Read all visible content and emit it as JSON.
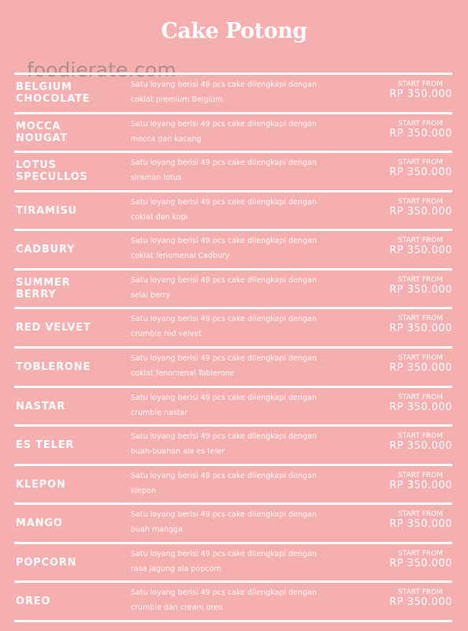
{
  "header": {
    "title": "Cake Potong",
    "watermark": "foodierate.com"
  },
  "items": [
    {
      "name": [
        "BELGIUM",
        "CHOCOLATE"
      ],
      "description": [
        "Satu loyang berisi 49 pcs cake dilengkapi dengan",
        "coklat premium Belgium"
      ],
      "price_label": "START FROM",
      "price": "RP 350.000"
    },
    {
      "name": [
        "MOCCA",
        "NOUGAT"
      ],
      "description": [
        "Satu loyang berisi 49 pcs cake dilengkapi dengan",
        "mocca dan kacang"
      ],
      "price_label": "START FROM",
      "price": "RP 350.000"
    },
    {
      "name": [
        "LOTUS",
        "SPECULLOS"
      ],
      "description": [
        "Satu loyang berisi 49 pcs cake dilengkapi dengan",
        "siraman lotus"
      ],
      "price_label": "START FROM",
      "price": "RP 350.000"
    },
    {
      "name": [
        "TIRAMISU"
      ],
      "description": [
        "Satu loyang berisi 49 pcs cake dilengkapi dengan",
        "coklat dan kopi"
      ],
      "price_label": "START FROM",
      "price": "RP 350.000"
    },
    {
      "name": [
        "CADBURY"
      ],
      "description": [
        "Satu loyang berisi 49 pcs cake dilengkapi dengan",
        "coklat fenomenal Cadbury"
      ],
      "price_label": "START FROM",
      "price": "RP 350.000"
    },
    {
      "name": [
        "SUMMER",
        "BERRY"
      ],
      "description": [
        "Satu loyang berisi 49 pcs cake dilengkapi dengan",
        "selai berry"
      ],
      "price_label": "START FROM",
      "price": "RP 350.000"
    },
    {
      "name": [
        "RED VELVET"
      ],
      "description": [
        "Satu loyang berisi 49 pcs cake dilengkapi dengan",
        "crumble red velvet"
      ],
      "price_label": "START FROM",
      "price": "RP 350.000"
    },
    {
      "name": [
        "TOBLERONE"
      ],
      "description": [
        "Satu loyang berisi 49 pcs cake dilengkapi dengan",
        "coklat fenomenal Toblerone"
      ],
      "price_label": "START FROM",
      "price": "RP 350.000"
    },
    {
      "name": [
        "NASTAR"
      ],
      "description": [
        "Satu loyang berisi 49 pcs cake dilengkapi dengan",
        "crumble nastar"
      ],
      "price_label": "START FROM",
      "price": "RP 350.000"
    },
    {
      "name": [
        "ES TELER"
      ],
      "description": [
        "Satu loyang berisi 49 pcs cake dilengkapi dengan",
        "buah-buahan ala es teler"
      ],
      "price_label": "START FROM",
      "price": "RP 350.000"
    },
    {
      "name": [
        "KLEPON"
      ],
      "description": [
        "Satu loyang berisi 49 pcs cake dilengkapi dengan",
        "klepon"
      ],
      "price_label": "START FROM",
      "price": "RP 350.000"
    },
    {
      "name": [
        "MANGO"
      ],
      "description": [
        "Satu loyang berisi 49 pcs cake dilengkapi dengan",
        "buah mangga"
      ],
      "price_label": "START FROM",
      "price": "RP 350.000"
    },
    {
      "name": [
        "POPCORN"
      ],
      "description": [
        "Satu loyang berisi 49 pcs cake dilengkapi dengan",
        "rasa jagung ala popcorn"
      ],
      "price_label": "START FROM",
      "price": "RP 350.000"
    },
    {
      "name": [
        "OREO"
      ],
      "description": [
        "Satu loyang berisi 49 pcs cake dilengkapi dengan",
        "crumble dan cream oreo"
      ],
      "price_label": "START FROM",
      "price": "RP 350.000"
    }
  ]
}
